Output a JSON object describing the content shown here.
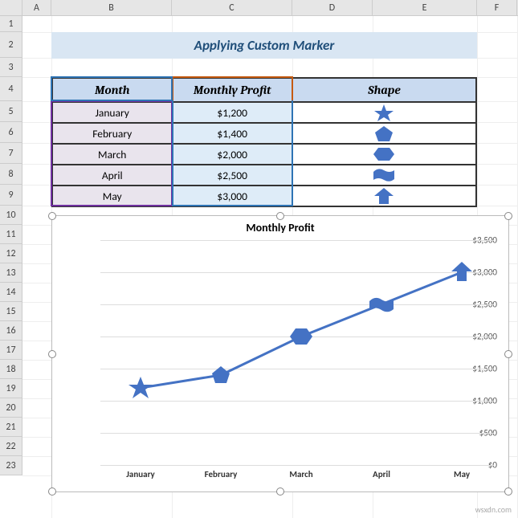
{
  "columns": {
    "labels": [
      "A",
      "B",
      "C",
      "D",
      "E",
      "F"
    ],
    "widths": [
      36,
      150,
      150,
      100,
      130,
      50
    ]
  },
  "rows": {
    "count": 23,
    "heights": {
      "default": 24,
      "1": 20,
      "2": 32,
      "4": 30,
      "5": 26,
      "6": 26,
      "7": 26,
      "8": 26,
      "9": 26
    }
  },
  "title": "Applying Custom Marker",
  "table": {
    "headers": [
      "Month",
      "Monthly Profit",
      "Shape"
    ],
    "rows": [
      {
        "month": "January",
        "profit": "$1,200",
        "shape": "star"
      },
      {
        "month": "February",
        "profit": "$1,400",
        "shape": "pentagon"
      },
      {
        "month": "March",
        "profit": "$2,000",
        "shape": "hexagon"
      },
      {
        "month": "April",
        "profit": "$2,500",
        "shape": "wave"
      },
      {
        "month": "May",
        "profit": "$3,000",
        "shape": "arrow"
      }
    ],
    "colors": {
      "header_bg": "#c9daf0",
      "month_bg": "#e9e4ed",
      "profit_bg": "#deecf8",
      "shape_fill": "#4472c4"
    }
  },
  "chart": {
    "type": "line",
    "title": "Monthly Profit",
    "categories": [
      "January",
      "February",
      "March",
      "April",
      "May"
    ],
    "values": [
      1200,
      1400,
      2000,
      2500,
      3000
    ],
    "markers": [
      "star",
      "pentagon",
      "hexagon",
      "wave",
      "arrow"
    ],
    "line_color": "#4472c4",
    "line_width": 3,
    "marker_size": 22,
    "ylim": [
      0,
      3500
    ],
    "ytick_step": 500,
    "ytick_labels": [
      "$0",
      "$500",
      "$1,000",
      "$1,500",
      "$2,000",
      "$2,500",
      "$3,000",
      "$3,500"
    ],
    "grid_color": "#dddddd",
    "background_color": "#ffffff",
    "title_fontsize": 14,
    "label_fontsize": 11
  },
  "selections": [
    {
      "type": "purple",
      "range": "B4:B9"
    },
    {
      "type": "blue",
      "range": "B4:E9"
    },
    {
      "type": "red",
      "range": "C4:C9"
    }
  ],
  "watermark": "wsxdn.com"
}
